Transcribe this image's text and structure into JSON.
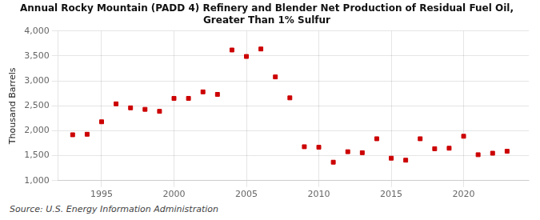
{
  "chart_data": {
    "type": "scatter",
    "title": "Annual Rocky Mountain (PADD 4) Refinery and Blender Net Production of Residual Fuel Oil,\nGreater Than 1% Sulfur",
    "y_label": "Thousand Barrels",
    "annotations": [
      "Source: U.S. Energy Information Administration"
    ],
    "x": [
      1993,
      1994,
      1995,
      1996,
      1997,
      1998,
      1999,
      2000,
      2001,
      2002,
      2003,
      2004,
      2005,
      2006,
      2007,
      2008,
      2009,
      2010,
      2011,
      2012,
      2013,
      2014,
      2015,
      2016,
      2017,
      2018,
      2019,
      2020,
      2021,
      2022,
      2023
    ],
    "values": [
      1920,
      1930,
      2180,
      2540,
      2460,
      2430,
      2390,
      2650,
      2650,
      2780,
      2730,
      3620,
      3490,
      3640,
      3080,
      2660,
      1680,
      1670,
      1370,
      1580,
      1560,
      1840,
      1450,
      1410,
      1840,
      1640,
      1650,
      1890,
      1520,
      1550,
      1590
    ],
    "color": "#cc0000",
    "marker": "square",
    "xlim": [
      1992,
      2024.5
    ],
    "xticks": [
      1995,
      2000,
      2005,
      2010,
      2015,
      2020
    ],
    "ylim": [
      1000,
      4000
    ],
    "yticks": [
      {
        "value": 1000,
        "label": "1,000"
      },
      {
        "value": 1500,
        "label": "1,500"
      },
      {
        "value": 2000,
        "label": "2,000"
      },
      {
        "value": 2500,
        "label": "2,500"
      },
      {
        "value": 3000,
        "label": "3,000"
      },
      {
        "value": 3500,
        "label": "3,500"
      },
      {
        "value": 4000,
        "label": "4,000"
      }
    ],
    "grid": true
  }
}
